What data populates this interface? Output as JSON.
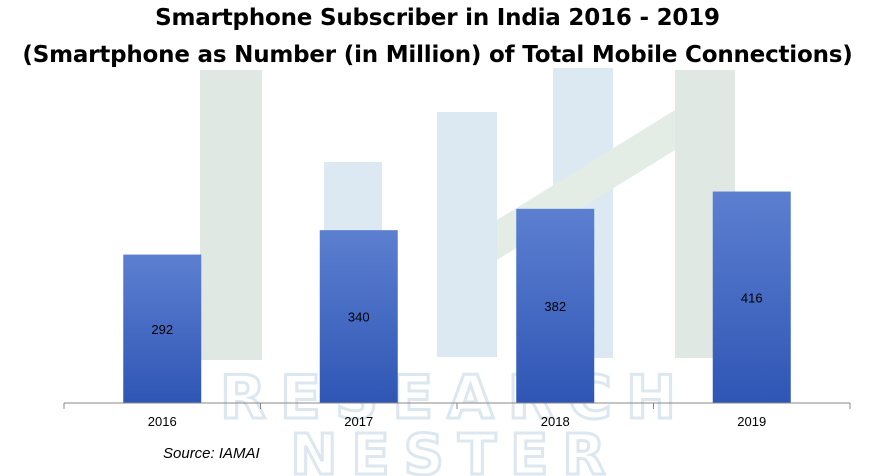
{
  "title_line1": "Smartphone Subscriber in India 2016 - 2019",
  "title_line2": "(Smartphone as Number (in Million) of Total Mobile Connections)",
  "source": "Source: IAMAI",
  "watermark": [
    "RESEARCH",
    "NESTER"
  ],
  "colors": {
    "bar_top": "#5c7fd0",
    "bar_bottom": "#2f56b5",
    "axis": "#888888",
    "watermark_green": "#dfe8e2",
    "watermark_blue": "#dce9f3"
  },
  "chart_data": {
    "type": "bar",
    "title": "Smartphone Subscriber in India 2016 - 2019",
    "subtitle": "(Smartphone as Number (in Million) of Total Mobile Connections)",
    "categories": [
      "2016",
      "2017",
      "2018",
      "2019"
    ],
    "values": [
      292,
      340,
      382,
      416
    ],
    "data_labels": [
      "292",
      "340",
      "382",
      "416"
    ],
    "xlabel": "",
    "ylabel": "",
    "ylim": [
      0,
      600
    ],
    "grid": false,
    "legend": "none"
  }
}
